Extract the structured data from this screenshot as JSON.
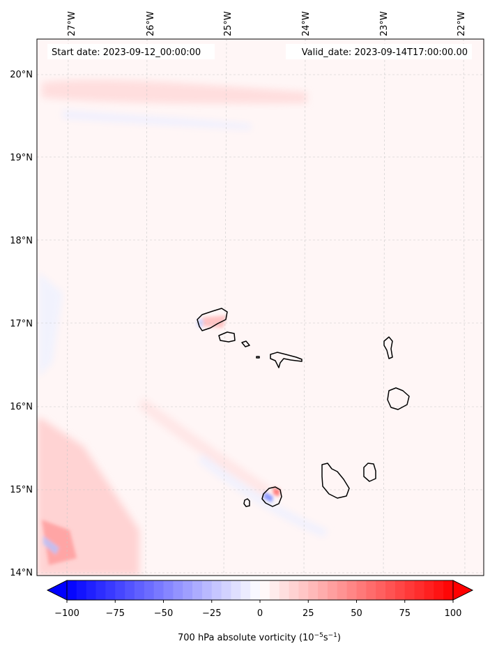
{
  "header": {
    "start_date": "Start date: 2023-09-12_00:00:00",
    "valid_date": "Valid_date: 2023-09-14T17:00:00.00"
  },
  "lon_ticks": [
    "27°W",
    "26°W",
    "25°W",
    "24°W",
    "23°W",
    "22°W"
  ],
  "lat_ticks": [
    "20°N",
    "19°N",
    "18°N",
    "17°N",
    "16°N",
    "15°N",
    "14°N"
  ],
  "colorbar": {
    "tick_labels": [
      "−100",
      "−75",
      "−50",
      "−25",
      "0",
      "25",
      "50",
      "75",
      "100"
    ],
    "label_main": "700 hPa absolute vorticity (10",
    "label_exp1": "−5",
    "label_mid": "s",
    "label_exp2": "−1",
    "label_end": ")",
    "min": -100,
    "max": 100,
    "colors": {
      "min": "#0000ff",
      "mid": "#ffffff",
      "max": "#ff0000"
    }
  },
  "islands": [
    "santo-antao",
    "sao-vicente",
    "santa-luzia",
    "branco",
    "sao-nicolau",
    "sal",
    "boa-vista",
    "santiago",
    "maio",
    "fogo",
    "brava"
  ]
}
